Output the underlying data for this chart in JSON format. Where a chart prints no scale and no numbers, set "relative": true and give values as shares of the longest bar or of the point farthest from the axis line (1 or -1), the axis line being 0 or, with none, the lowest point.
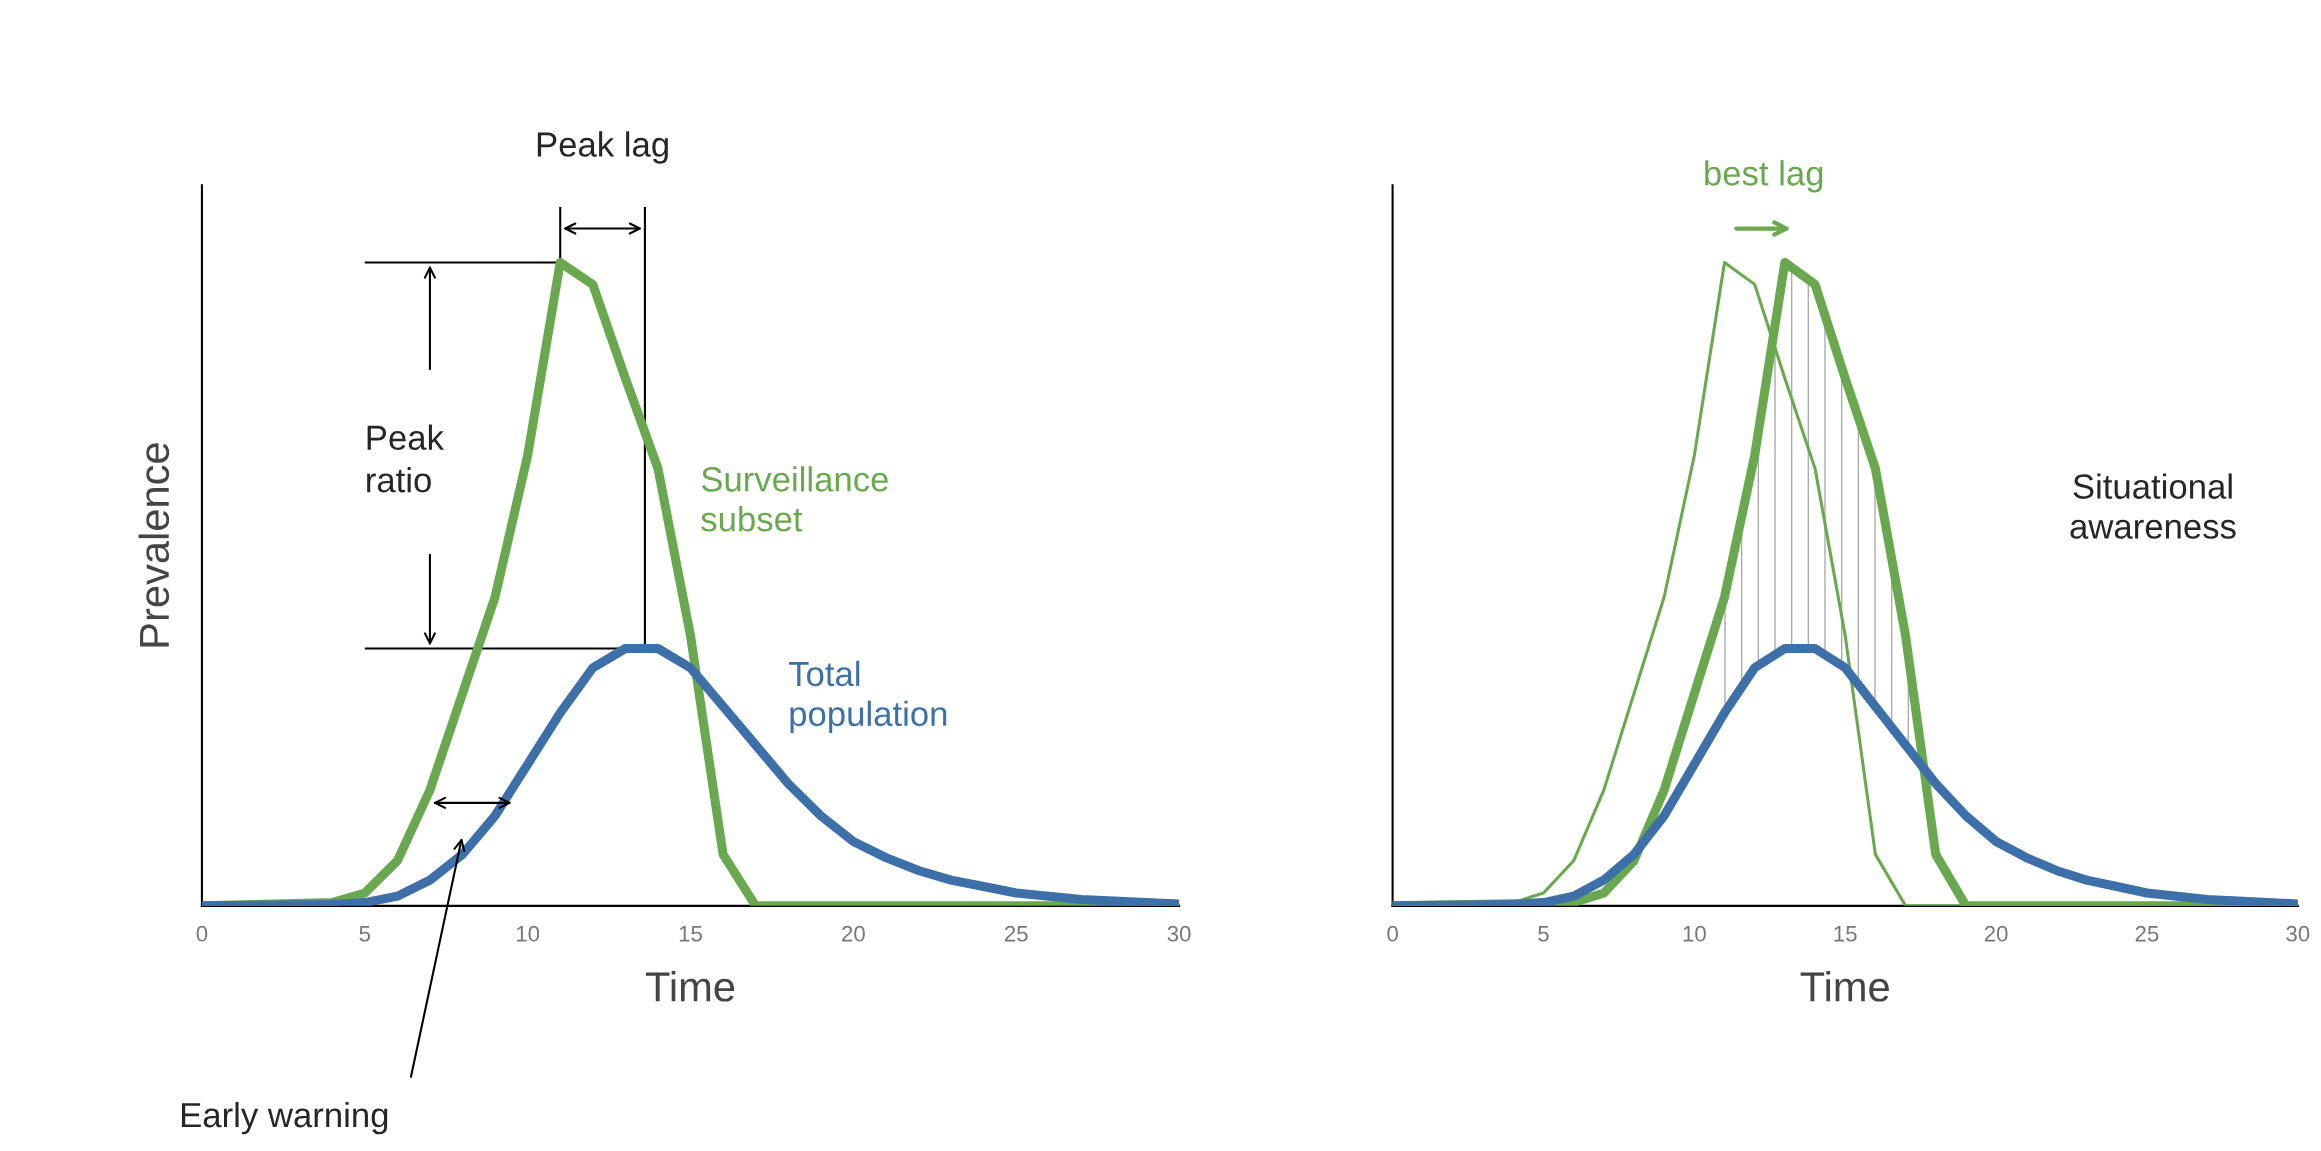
{
  "chart_data": [
    {
      "type": "line",
      "relative": true,
      "xlabel": "Time",
      "ylabel": "Prevalence",
      "xlim": [
        0,
        30
      ],
      "xticks": [
        0,
        5,
        10,
        15,
        20,
        25,
        30
      ],
      "grid": false,
      "legend": false,
      "marker": "none",
      "line_style": "solid",
      "series": [
        {
          "name": "Surveillance subset",
          "color": "#6aa84f",
          "x": [
            0,
            4,
            5,
            6,
            7,
            8,
            9,
            10,
            11,
            12,
            13,
            14,
            15,
            16,
            17,
            20,
            25,
            30
          ],
          "values": [
            0,
            0.005,
            0.02,
            0.07,
            0.18,
            0.33,
            0.48,
            0.7,
            1.0,
            0.966,
            0.82,
            0.68,
            0.42,
            0.08,
            0,
            0,
            0,
            0
          ]
        },
        {
          "name": "Total population",
          "color": "#3d6fa8",
          "x": [
            0,
            4,
            5,
            6,
            7,
            8,
            9,
            10,
            11,
            12,
            13,
            14,
            15,
            16,
            17,
            18,
            19,
            20,
            21,
            22,
            23,
            24,
            25,
            27,
            30
          ],
          "values": [
            0,
            0.002,
            0.005,
            0.015,
            0.04,
            0.08,
            0.14,
            0.22,
            0.3,
            0.37,
            0.4,
            0.4,
            0.37,
            0.31,
            0.25,
            0.19,
            0.14,
            0.1,
            0.075,
            0.055,
            0.04,
            0.03,
            0.02,
            0.01,
            0.003
          ]
        }
      ],
      "annotations": [
        "Peak lag",
        "Peak ratio",
        "Early warning"
      ]
    },
    {
      "type": "line",
      "relative": true,
      "xlabel": "Time",
      "xlim": [
        0,
        30
      ],
      "xticks": [
        0,
        5,
        10,
        15,
        20,
        25,
        30
      ],
      "grid": false,
      "legend": false,
      "marker": "none",
      "line_style": "solid",
      "tick_labels": "x",
      "series": [
        {
          "type": "area",
          "color": "#aaaaaa",
          "x": [
            10.5,
            11,
            11.5,
            12,
            12.5,
            13,
            13.5,
            14,
            14.5,
            15,
            15.5,
            16,
            16.5,
            17,
            17.5
          ],
          "values": [
            0.4,
            0.48,
            0.59,
            0.7,
            0.85,
            1.0,
            0.98,
            0.966,
            0.89,
            0.82,
            0.75,
            0.68,
            0.55,
            0.42,
            0.25
          ]
        },
        {
          "color": "#6aa84f",
          "x": [
            0,
            4,
            5,
            6,
            7,
            8,
            9,
            10,
            11,
            12,
            13,
            14,
            15,
            16,
            17,
            20,
            25,
            30
          ],
          "values": [
            0,
            0.005,
            0.02,
            0.07,
            0.18,
            0.33,
            0.48,
            0.7,
            1.0,
            0.966,
            0.82,
            0.68,
            0.42,
            0.08,
            0,
            0,
            0,
            0
          ]
        },
        {
          "color": "#6aa84f",
          "x": [
            0,
            6,
            7,
            8,
            9,
            10,
            11,
            12,
            13,
            14,
            15,
            16,
            17,
            18,
            19,
            20,
            25,
            30
          ],
          "values": [
            0,
            0.005,
            0.02,
            0.07,
            0.18,
            0.33,
            0.48,
            0.7,
            1.0,
            0.966,
            0.82,
            0.68,
            0.42,
            0.08,
            0,
            0,
            0,
            0
          ]
        },
        {
          "color": "#3d6fa8",
          "x": [
            0,
            4,
            5,
            6,
            7,
            8,
            9,
            10,
            11,
            12,
            13,
            14,
            15,
            16,
            17,
            18,
            19,
            20,
            21,
            22,
            23,
            24,
            25,
            27,
            30
          ],
          "values": [
            0,
            0.002,
            0.005,
            0.015,
            0.04,
            0.08,
            0.14,
            0.22,
            0.3,
            0.37,
            0.4,
            0.4,
            0.37,
            0.31,
            0.25,
            0.19,
            0.14,
            0.1,
            0.075,
            0.055,
            0.04,
            0.03,
            0.02,
            0.01,
            0.003
          ]
        }
      ],
      "annotations": [
        "best lag",
        "Situational awareness"
      ]
    }
  ]
}
